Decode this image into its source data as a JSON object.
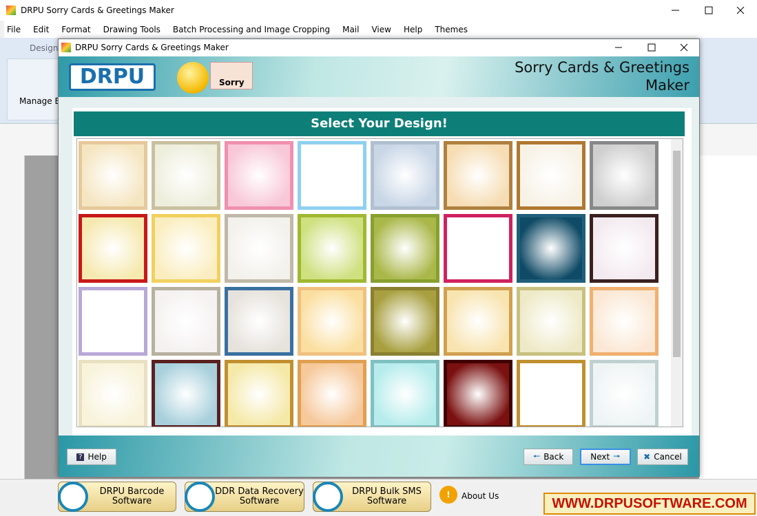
{
  "window": {
    "title": "DRPU Sorry Cards & Greetings Maker"
  },
  "menu": [
    "File",
    "Edit",
    "Format",
    "Drawing Tools",
    "Batch Processing and Image Cropping",
    "Mail",
    "View",
    "Help",
    "Themes"
  ],
  "ribbon": {
    "tab": "Designs",
    "button": "Manage Ba"
  },
  "dialog": {
    "title": "DRPU Sorry Cards & Greetings Maker",
    "logo": "DRPU",
    "badge": "Sorry",
    "heading": "Sorry Cards & Greetings Maker",
    "banner": "Select Your Design!",
    "buttons": {
      "help": "Help",
      "back": "Back",
      "next": "Next",
      "cancel": "Cancel"
    }
  },
  "footer": {
    "products": [
      [
        "DRPU Barcode",
        "Software"
      ],
      [
        "DDR Data Recovery",
        "Software"
      ],
      [
        "DRPU Bulk SMS",
        "Software"
      ]
    ],
    "about": "About Us",
    "website": "WWW.DRPUSOFTWARE.COM"
  }
}
